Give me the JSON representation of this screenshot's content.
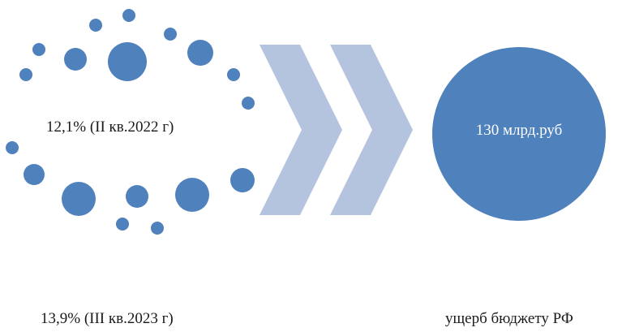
{
  "colors": {
    "dot": "#4f81bd",
    "chevron": "#b4c3de",
    "result_circle": "#4f81bd"
  },
  "labels": {
    "period_start": "12,1% (II кв.2022 г)",
    "period_end": "13,9% (III кв.2023 г)",
    "result_value": "130 млрд.руб",
    "result_caption": "ущерб бюджету РФ"
  },
  "icons": {
    "arrow": "chevron-right-icon"
  }
}
